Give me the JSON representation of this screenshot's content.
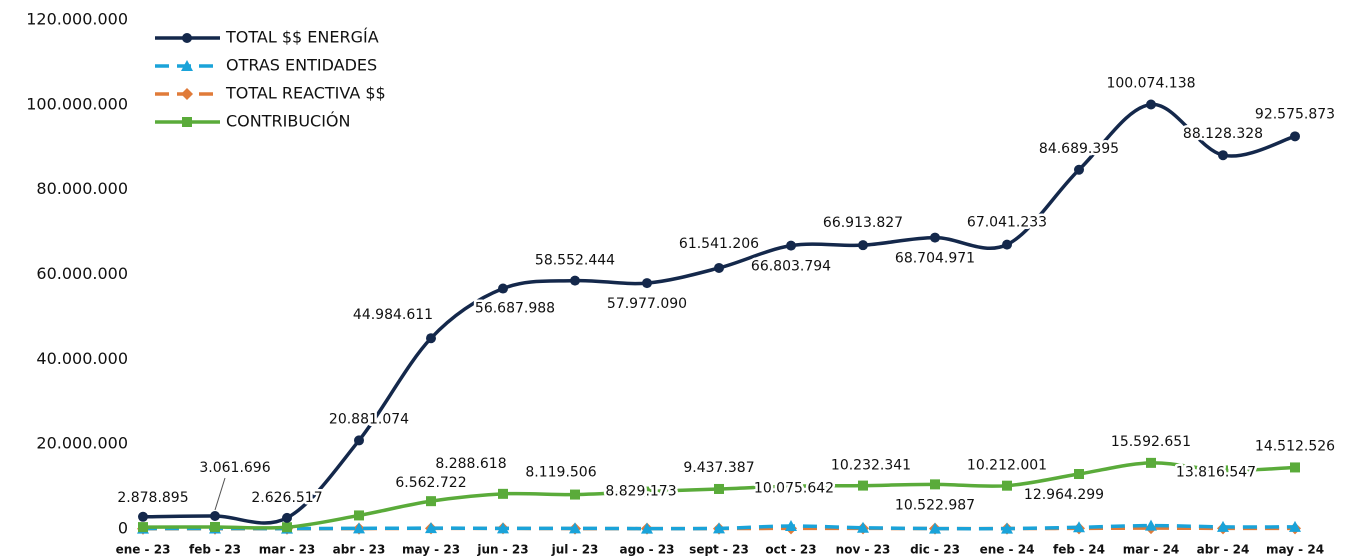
{
  "chart_data": {
    "type": "line",
    "categories": [
      "ene - 23",
      "feb - 23",
      "mar - 23",
      "abr - 23",
      "may - 23",
      "jun - 23",
      "jul - 23",
      "ago - 23",
      "sept - 23",
      "oct - 23",
      "nov - 23",
      "dic - 23",
      "ene - 24",
      "feb - 24",
      "mar - 24",
      "abr - 24",
      "may - 24"
    ],
    "ylim": [
      0,
      120000000
    ],
    "yticks": [
      {
        "value": 0,
        "label": "0"
      },
      {
        "value": 20000000,
        "label": "20.000.000"
      },
      {
        "value": 40000000,
        "label": "40.000.000"
      },
      {
        "value": 60000000,
        "label": "60.000.000"
      },
      {
        "value": 80000000,
        "label": "80.000.000"
      },
      {
        "value": 100000000,
        "label": "100.000.000"
      },
      {
        "value": 120000000,
        "label": "120.000.000"
      }
    ],
    "grid": false,
    "legend": "top-left",
    "series": [
      {
        "name": "TOTAL $$ ENERGÍA",
        "color": "#14284b",
        "marker": "circle",
        "dash": false,
        "values": [
          2878895,
          3061696,
          2626517,
          20881074,
          44984611,
          56687988,
          58552444,
          57977090,
          61541206,
          66803794,
          66913827,
          68704971,
          67041233,
          84689395,
          100074138,
          88128328,
          92575873
        ],
        "value_labels": [
          "2.878.895",
          "3.061.696",
          "2.626.517",
          "20.881.074",
          "44.984.611",
          "56.687.988",
          "58.552.444",
          "57.977.090",
          "61.541.206",
          "66.803.794",
          "66.913.827",
          "68.704.971",
          "67.041.233",
          "84.689.395",
          "100.074.138",
          "88.128.328",
          "92.575.873"
        ]
      },
      {
        "name": "OTRAS ENTIDADES",
        "color": "#1aa3d9",
        "marker": "triangle",
        "dash": true,
        "values": [
          100000,
          120000,
          100000,
          150000,
          200000,
          150000,
          150000,
          100000,
          150000,
          700000,
          300000,
          100000,
          100000,
          400000,
          800000,
          500000,
          500000
        ]
      },
      {
        "name": "TOTAL REACTIVA $$",
        "color": "#e07b39",
        "marker": "diamond",
        "dash": true,
        "values": [
          50000,
          50000,
          50000,
          100000,
          150000,
          150000,
          100000,
          100000,
          100000,
          150000,
          150000,
          100000,
          100000,
          150000,
          200000,
          150000,
          150000
        ]
      },
      {
        "name": "CONTRIBUCIÓN",
        "color": "#5aab3a",
        "marker": "square",
        "dash": false,
        "values": [
          450000,
          480000,
          420000,
          3200000,
          6562722,
          8288618,
          8119506,
          8829173,
          9437387,
          10075642,
          10232341,
          10522987,
          10212001,
          12964299,
          15592651,
          13816547,
          14512526
        ],
        "value_labels": [
          null,
          null,
          null,
          null,
          "6.562.722",
          "8.288.618",
          "8.119.506",
          "8.829.173",
          "9.437.387",
          "10.075.642",
          "10.232.341",
          "10.522.987",
          "10.212.001",
          "12.964.299",
          "15.592.651",
          "13.816.547",
          "14.512.526"
        ]
      }
    ]
  }
}
